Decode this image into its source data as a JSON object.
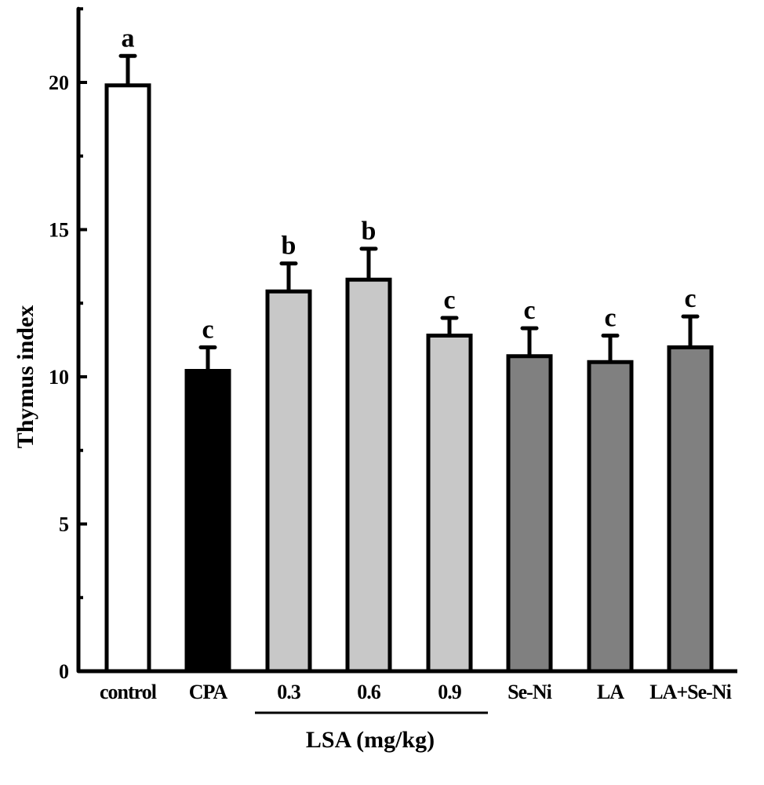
{
  "chart_data": {
    "type": "bar",
    "title": "",
    "xlabel": "",
    "ylabel": "Thymus index",
    "ylim": [
      0,
      22.5
    ],
    "yticks": [
      0,
      5,
      10,
      15,
      20
    ],
    "ytick_labels": [
      "0",
      "5",
      "10",
      "15",
      "20"
    ],
    "categories": [
      "control",
      "CPA",
      "0.3",
      "0.6",
      "0.9",
      "Se-Ni",
      "LA",
      "LA+Se-Ni"
    ],
    "values": [
      19.9,
      10.2,
      12.9,
      13.3,
      11.4,
      10.7,
      10.5,
      11.0
    ],
    "errors": [
      1.0,
      0.8,
      0.95,
      1.05,
      0.6,
      0.95,
      0.9,
      1.05
    ],
    "significance": [
      "a",
      "c",
      "b",
      "b",
      "c",
      "c",
      "c",
      "c"
    ],
    "fill_colors": [
      "#ffffff",
      "#000000",
      "#c8c8c8",
      "#c8c8c8",
      "#c8c8c8",
      "#808080",
      "#808080",
      "#808080"
    ],
    "group_label": "LSA (mg/kg)",
    "group_members": [
      "0.3",
      "0.6",
      "0.9"
    ],
    "grid": false,
    "legend": "none"
  }
}
